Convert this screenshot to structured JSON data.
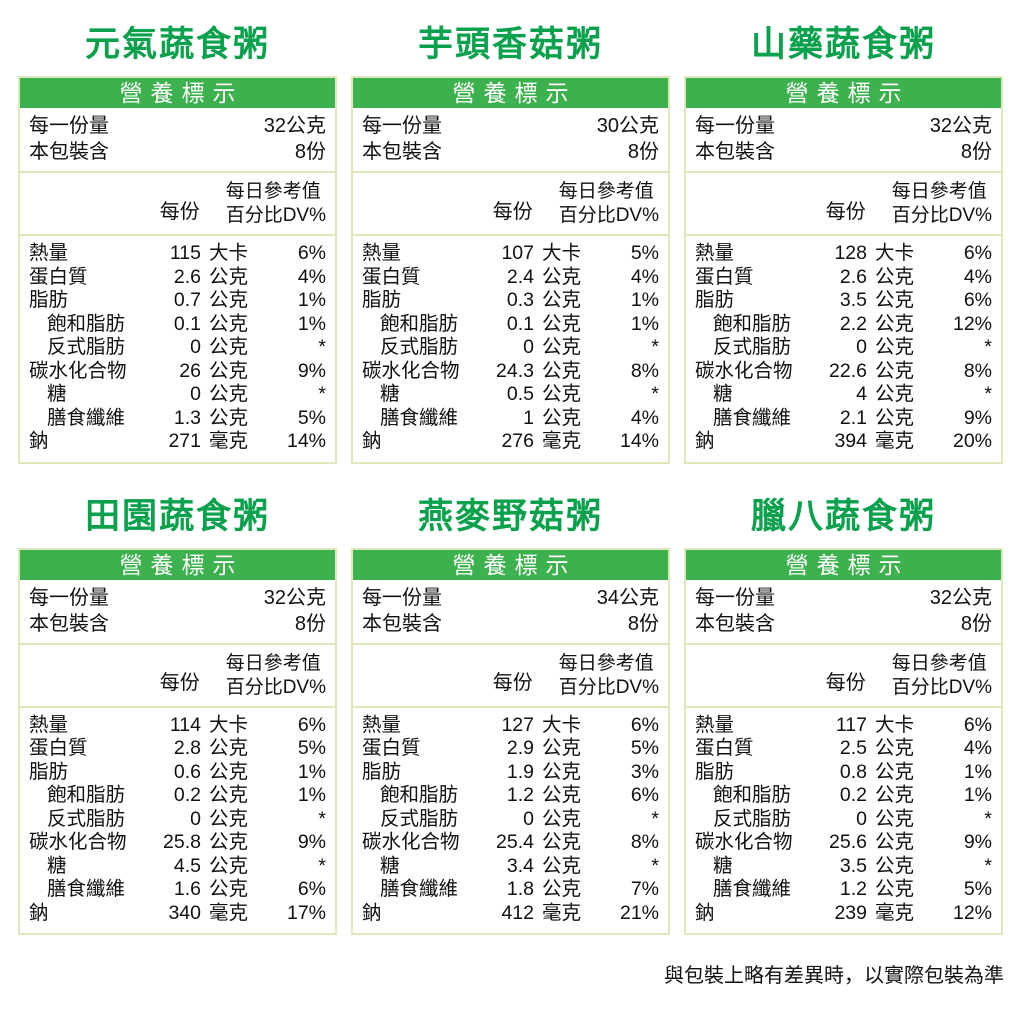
{
  "labels": {
    "nutrition_header": "營養標示",
    "serving_size_label": "每一份量",
    "package_contains_label": "本包裝含",
    "per_serving_label": "每份",
    "daily_value_line1": "每日參考值",
    "daily_value_line2": "百分比DV%"
  },
  "footer": {
    "note": "與包裝上略有差異時，以實際包裝為準"
  },
  "colors": {
    "title_green": "#0aa14d",
    "header_bar_green": "#3cb14d",
    "table_border": "#dde9b9",
    "header_text": "#ffffff"
  },
  "products": [
    {
      "title": "元氣蔬食粥",
      "serving_size": "32公克",
      "package_contains": "8份",
      "rows": [
        {
          "name": "熱量",
          "value": "115",
          "unit": "大卡",
          "dv": "6%",
          "sub": false
        },
        {
          "name": "蛋白質",
          "value": "2.6",
          "unit": "公克",
          "dv": "4%",
          "sub": false
        },
        {
          "name": "脂肪",
          "value": "0.7",
          "unit": "公克",
          "dv": "1%",
          "sub": false
        },
        {
          "name": "飽和脂肪",
          "value": "0.1",
          "unit": "公克",
          "dv": "1%",
          "sub": true
        },
        {
          "name": "反式脂肪",
          "value": "0",
          "unit": "公克",
          "dv": "*",
          "sub": true
        },
        {
          "name": "碳水化合物",
          "value": "26",
          "unit": "公克",
          "dv": "9%",
          "sub": false
        },
        {
          "name": "糖",
          "value": "0",
          "unit": "公克",
          "dv": "*",
          "sub": true
        },
        {
          "name": "膳食纖維",
          "value": "1.3",
          "unit": "公克",
          "dv": "5%",
          "sub": true
        },
        {
          "name": "鈉",
          "value": "271",
          "unit": "毫克",
          "dv": "14%",
          "sub": false
        }
      ]
    },
    {
      "title": "芋頭香菇粥",
      "serving_size": "30公克",
      "package_contains": "8份",
      "rows": [
        {
          "name": "熱量",
          "value": "107",
          "unit": "大卡",
          "dv": "5%",
          "sub": false
        },
        {
          "name": "蛋白質",
          "value": "2.4",
          "unit": "公克",
          "dv": "4%",
          "sub": false
        },
        {
          "name": "脂肪",
          "value": "0.3",
          "unit": "公克",
          "dv": "1%",
          "sub": false
        },
        {
          "name": "飽和脂肪",
          "value": "0.1",
          "unit": "公克",
          "dv": "1%",
          "sub": true
        },
        {
          "name": "反式脂肪",
          "value": "0",
          "unit": "公克",
          "dv": "*",
          "sub": true
        },
        {
          "name": "碳水化合物",
          "value": "24.3",
          "unit": "公克",
          "dv": "8%",
          "sub": false
        },
        {
          "name": "糖",
          "value": "0.5",
          "unit": "公克",
          "dv": "*",
          "sub": true
        },
        {
          "name": "膳食纖維",
          "value": "1",
          "unit": "公克",
          "dv": "4%",
          "sub": true
        },
        {
          "name": "鈉",
          "value": "276",
          "unit": "毫克",
          "dv": "14%",
          "sub": false
        }
      ]
    },
    {
      "title": "山藥蔬食粥",
      "serving_size": "32公克",
      "package_contains": "8份",
      "rows": [
        {
          "name": "熱量",
          "value": "128",
          "unit": "大卡",
          "dv": "6%",
          "sub": false
        },
        {
          "name": "蛋白質",
          "value": "2.6",
          "unit": "公克",
          "dv": "4%",
          "sub": false
        },
        {
          "name": "脂肪",
          "value": "3.5",
          "unit": "公克",
          "dv": "6%",
          "sub": false
        },
        {
          "name": "飽和脂肪",
          "value": "2.2",
          "unit": "公克",
          "dv": "12%",
          "sub": true
        },
        {
          "name": "反式脂肪",
          "value": "0",
          "unit": "公克",
          "dv": "*",
          "sub": true
        },
        {
          "name": "碳水化合物",
          "value": "22.6",
          "unit": "公克",
          "dv": "8%",
          "sub": false
        },
        {
          "name": "糖",
          "value": "4",
          "unit": "公克",
          "dv": "*",
          "sub": true
        },
        {
          "name": "膳食纖維",
          "value": "2.1",
          "unit": "公克",
          "dv": "9%",
          "sub": true
        },
        {
          "name": "鈉",
          "value": "394",
          "unit": "毫克",
          "dv": "20%",
          "sub": false
        }
      ]
    },
    {
      "title": "田園蔬食粥",
      "serving_size": "32公克",
      "package_contains": "8份",
      "rows": [
        {
          "name": "熱量",
          "value": "114",
          "unit": "大卡",
          "dv": "6%",
          "sub": false
        },
        {
          "name": "蛋白質",
          "value": "2.8",
          "unit": "公克",
          "dv": "5%",
          "sub": false
        },
        {
          "name": "脂肪",
          "value": "0.6",
          "unit": "公克",
          "dv": "1%",
          "sub": false
        },
        {
          "name": "飽和脂肪",
          "value": "0.2",
          "unit": "公克",
          "dv": "1%",
          "sub": true
        },
        {
          "name": "反式脂肪",
          "value": "0",
          "unit": "公克",
          "dv": "*",
          "sub": true
        },
        {
          "name": "碳水化合物",
          "value": "25.8",
          "unit": "公克",
          "dv": "9%",
          "sub": false
        },
        {
          "name": "糖",
          "value": "4.5",
          "unit": "公克",
          "dv": "*",
          "sub": true
        },
        {
          "name": "膳食纖維",
          "value": "1.6",
          "unit": "公克",
          "dv": "6%",
          "sub": true
        },
        {
          "name": "鈉",
          "value": "340",
          "unit": "毫克",
          "dv": "17%",
          "sub": false
        }
      ]
    },
    {
      "title": "燕麥野菇粥",
      "serving_size": "34公克",
      "package_contains": "8份",
      "rows": [
        {
          "name": "熱量",
          "value": "127",
          "unit": "大卡",
          "dv": "6%",
          "sub": false
        },
        {
          "name": "蛋白質",
          "value": "2.9",
          "unit": "公克",
          "dv": "5%",
          "sub": false
        },
        {
          "name": "脂肪",
          "value": "1.9",
          "unit": "公克",
          "dv": "3%",
          "sub": false
        },
        {
          "name": "飽和脂肪",
          "value": "1.2",
          "unit": "公克",
          "dv": "6%",
          "sub": true
        },
        {
          "name": "反式脂肪",
          "value": "0",
          "unit": "公克",
          "dv": "*",
          "sub": true
        },
        {
          "name": "碳水化合物",
          "value": "25.4",
          "unit": "公克",
          "dv": "8%",
          "sub": false
        },
        {
          "name": "糖",
          "value": "3.4",
          "unit": "公克",
          "dv": "*",
          "sub": true
        },
        {
          "name": "膳食纖維",
          "value": "1.8",
          "unit": "公克",
          "dv": "7%",
          "sub": true
        },
        {
          "name": "鈉",
          "value": "412",
          "unit": "毫克",
          "dv": "21%",
          "sub": false
        }
      ]
    },
    {
      "title": "臘八蔬食粥",
      "serving_size": "32公克",
      "package_contains": "8份",
      "rows": [
        {
          "name": "熱量",
          "value": "117",
          "unit": "大卡",
          "dv": "6%",
          "sub": false
        },
        {
          "name": "蛋白質",
          "value": "2.5",
          "unit": "公克",
          "dv": "4%",
          "sub": false
        },
        {
          "name": "脂肪",
          "value": "0.8",
          "unit": "公克",
          "dv": "1%",
          "sub": false
        },
        {
          "name": "飽和脂肪",
          "value": "0.2",
          "unit": "公克",
          "dv": "1%",
          "sub": true
        },
        {
          "name": "反式脂肪",
          "value": "0",
          "unit": "公克",
          "dv": "*",
          "sub": true
        },
        {
          "name": "碳水化合物",
          "value": "25.6",
          "unit": "公克",
          "dv": "9%",
          "sub": false
        },
        {
          "name": "糖",
          "value": "3.5",
          "unit": "公克",
          "dv": "*",
          "sub": true
        },
        {
          "name": "膳食纖維",
          "value": "1.2",
          "unit": "公克",
          "dv": "5%",
          "sub": true
        },
        {
          "name": "鈉",
          "value": "239",
          "unit": "毫克",
          "dv": "12%",
          "sub": false
        }
      ]
    }
  ]
}
